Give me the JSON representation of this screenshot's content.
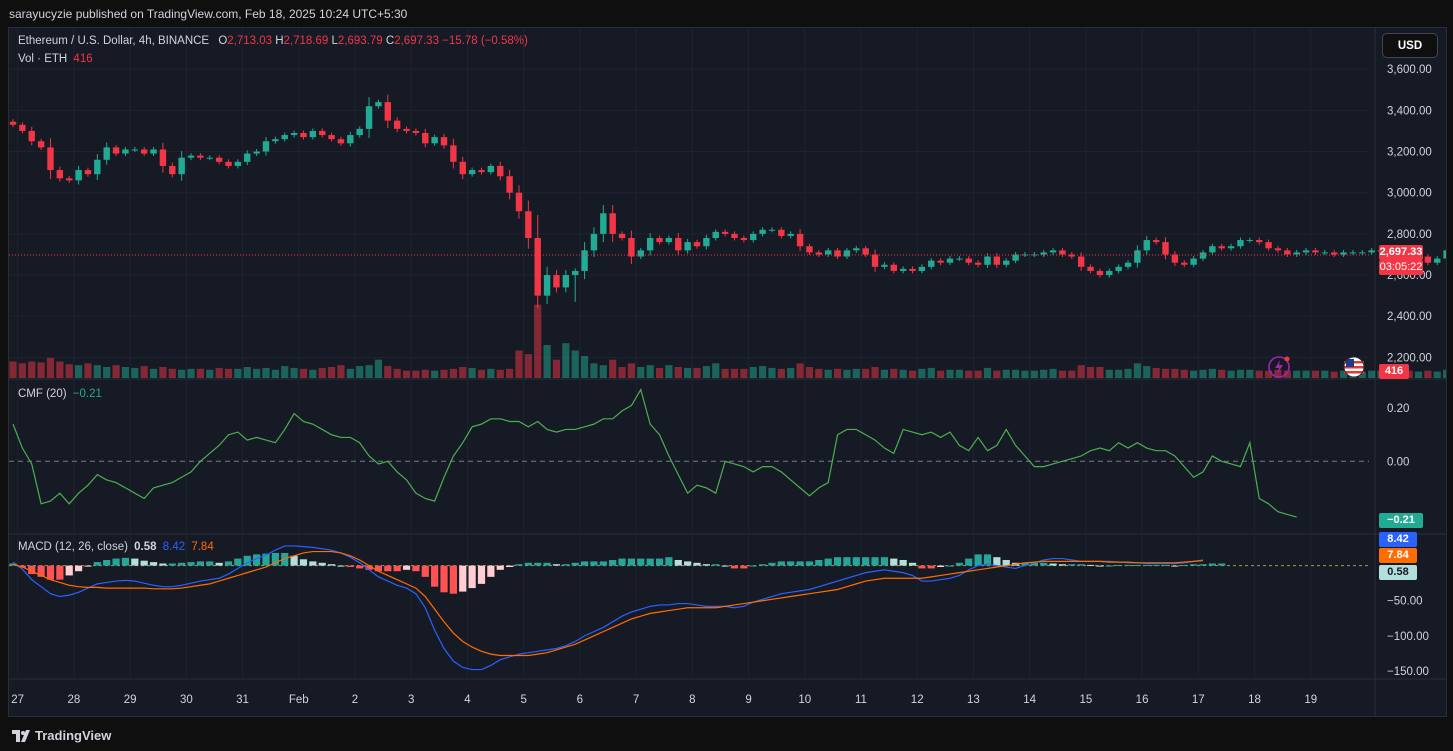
{
  "header": {
    "publisher_line": "sarayucyzie published on TradingView.com, Feb 18, 2025 10:24 UTC+5:30"
  },
  "symbol": {
    "name": "Ethereum / U.S. Dollar, 4h, BINANCE",
    "o_label": "O",
    "o_value": "2,713.03",
    "h_label": "H",
    "h_value": "2,718.69",
    "l_label": "L",
    "l_value": "2,693.79",
    "c_label": "C",
    "c_value": "2,697.33",
    "change": "−15.78 (−0.58%)"
  },
  "volume": {
    "label": "Vol · ETH",
    "value": "416"
  },
  "currency_button": "USD",
  "price_labels": {
    "last": "2,697.33",
    "countdown": "03:05:22",
    "volume": "416"
  },
  "cmf": {
    "label": "CMF (20)",
    "value": "−0.21",
    "badge": "−0.21"
  },
  "macd": {
    "label": "MACD (12, 26, close)",
    "hist": "0.58",
    "macd": "8.42",
    "signal": "7.84",
    "badge_macd": "8.42",
    "badge_signal": "7.84",
    "badge_hist": "0.58"
  },
  "brand": "TradingView",
  "colors": {
    "up": "#22ab94",
    "down": "#f23645",
    "macd_line": "#2962ff",
    "signal_line": "#ff6d00",
    "cmf_line": "#4caf50",
    "hist_up_strong": "#26a69a",
    "hist_up_weak": "#b2dfdb",
    "hist_down_strong": "#ff5252",
    "hist_down_weak": "#ffcdd2"
  },
  "chart_data": [
    {
      "type": "candlestick",
      "title": "Ethereum / U.S. Dollar, 4h, BINANCE",
      "x_tick_labels": [
        "27",
        "28",
        "29",
        "30",
        "31",
        "Feb",
        "2",
        "3",
        "4",
        "5",
        "6",
        "7",
        "8",
        "9",
        "10",
        "11",
        "12",
        "13",
        "14",
        "15",
        "16",
        "17",
        "18",
        "19"
      ],
      "y_tick_labels": [
        "3,600.00",
        "3,400.00",
        "3,200.00",
        "3,000.00",
        "2,800.00",
        "2,600.00",
        "2,400.00",
        "2,200.00"
      ],
      "ylim": [
        2100,
        3800
      ],
      "start": "Jan 26, 21:00",
      "bar_interval_hours": 4,
      "closes": [
        3330,
        3300,
        3250,
        3220,
        3110,
        3070,
        3060,
        3110,
        3090,
        3160,
        3220,
        3190,
        3210,
        3210,
        3190,
        3210,
        3130,
        3090,
        3170,
        3180,
        3170,
        3170,
        3150,
        3130,
        3150,
        3190,
        3200,
        3250,
        3260,
        3280,
        3290,
        3270,
        3300,
        3280,
        3260,
        3240,
        3280,
        3310,
        3420,
        3440,
        3350,
        3310,
        3300,
        3290,
        3240,
        3270,
        3230,
        3150,
        3090,
        3110,
        3100,
        3130,
        3080,
        3000,
        2910,
        2780,
        2500,
        2600,
        2540,
        2600,
        2620,
        2720,
        2800,
        2900,
        2800,
        2780,
        2690,
        2720,
        2780,
        2760,
        2780,
        2720,
        2760,
        2740,
        2780,
        2810,
        2800,
        2780,
        2770,
        2800,
        2820,
        2820,
        2790,
        2800,
        2740,
        2710,
        2700,
        2720,
        2690,
        2720,
        2730,
        2700,
        2640,
        2650,
        2620,
        2630,
        2620,
        2640,
        2670,
        2660,
        2680,
        2680,
        2660,
        2650,
        2690,
        2650,
        2670,
        2700,
        2700,
        2700,
        2710,
        2720,
        2700,
        2690,
        2640,
        2620,
        2600,
        2620,
        2640,
        2660,
        2720,
        2770,
        2760,
        2700,
        2660,
        2650,
        2680,
        2710,
        2740,
        2730,
        2740,
        2770,
        2770,
        2760,
        2730,
        2720,
        2700,
        2710,
        2720,
        2710,
        2710,
        2700,
        2710,
        2710,
        2710,
        2720,
        2720,
        2700,
        2700,
        2690,
        2690,
        2660,
        2680,
        2720,
        2780,
        2770,
        2740,
        2740,
        2710,
        2700
      ],
      "volume": [
        18,
        16,
        18,
        17,
        22,
        18,
        15,
        14,
        16,
        14,
        12,
        14,
        12,
        11,
        13,
        10,
        12,
        10,
        9,
        10,
        10,
        9,
        11,
        10,
        10,
        12,
        10,
        11,
        9,
        13,
        11,
        10,
        9,
        11,
        12,
        14,
        10,
        13,
        14,
        20,
        13,
        10,
        8,
        8,
        9,
        8,
        9,
        10,
        12,
        11,
        9,
        10,
        9,
        10,
        30,
        26,
        80,
        36,
        20,
        38,
        30,
        24,
        16,
        14,
        20,
        12,
        16,
        12,
        14,
        11,
        14,
        12,
        11,
        11,
        13,
        16,
        10,
        10,
        10,
        12,
        13,
        11,
        10,
        11,
        16,
        12,
        10,
        9,
        10,
        9,
        10,
        10,
        12,
        9,
        10,
        9,
        8,
        10,
        11,
        8,
        9,
        9,
        8,
        8,
        11,
        8,
        9,
        9,
        8,
        8,
        9,
        10,
        8,
        8,
        14,
        12,
        12,
        9,
        9,
        10,
        16,
        13,
        11,
        10,
        10,
        9,
        8,
        9,
        10,
        9,
        8,
        9,
        9,
        8,
        8,
        9,
        8,
        8,
        8,
        8,
        8,
        7,
        8,
        7,
        7,
        8,
        8,
        7,
        7,
        8,
        7,
        8,
        7,
        9,
        14,
        17,
        12,
        9,
        8,
        5
      ],
      "last_price": 2697.33
    },
    {
      "type": "line",
      "title": "CMF (20)",
      "y_tick_labels": [
        "0.20",
        "0.00"
      ],
      "ylim": [
        -0.27,
        0.31
      ],
      "values": [
        0.14,
        0.05,
        -0.01,
        -0.16,
        -0.15,
        -0.12,
        -0.16,
        -0.12,
        -0.09,
        -0.05,
        -0.07,
        -0.08,
        -0.1,
        -0.12,
        -0.14,
        -0.1,
        -0.09,
        -0.08,
        -0.06,
        -0.04,
        0.0,
        0.03,
        0.06,
        0.1,
        0.11,
        0.08,
        0.09,
        0.08,
        0.07,
        0.12,
        0.18,
        0.15,
        0.14,
        0.12,
        0.1,
        0.09,
        0.09,
        0.07,
        0.02,
        -0.01,
        0.0,
        -0.04,
        -0.07,
        -0.12,
        -0.14,
        -0.15,
        -0.06,
        0.02,
        0.07,
        0.13,
        0.14,
        0.16,
        0.16,
        0.15,
        0.15,
        0.13,
        0.15,
        0.12,
        0.11,
        0.12,
        0.12,
        0.13,
        0.14,
        0.16,
        0.16,
        0.19,
        0.21,
        0.27,
        0.14,
        0.1,
        0.02,
        -0.05,
        -0.12,
        -0.09,
        -0.1,
        -0.12,
        0.0,
        -0.01,
        -0.02,
        -0.04,
        -0.02,
        -0.02,
        -0.04,
        -0.07,
        -0.1,
        -0.13,
        -0.1,
        -0.08,
        0.1,
        0.12,
        0.12,
        0.1,
        0.08,
        0.05,
        0.03,
        0.12,
        0.11,
        0.1,
        0.11,
        0.09,
        0.11,
        0.06,
        0.04,
        0.09,
        0.04,
        0.06,
        0.12,
        0.06,
        0.02,
        -0.02,
        -0.02,
        -0.01,
        0.0,
        0.01,
        0.02,
        0.04,
        0.05,
        0.04,
        0.07,
        0.05,
        0.07,
        0.05,
        0.04,
        0.04,
        0.02,
        -0.02,
        -0.06,
        -0.04,
        0.02,
        0.0,
        -0.01,
        -0.02,
        0.07,
        -0.14,
        -0.16,
        -0.19,
        -0.2,
        -0.21
      ]
    },
    {
      "type": "line",
      "title": "MACD (12, 26, close)",
      "y_tick_labels": [
        "−50.00",
        "−100.00",
        "−150.00"
      ],
      "ylim": [
        -160,
        45
      ],
      "macd": [
        5,
        -5,
        -20,
        -30,
        -40,
        -44,
        -42,
        -38,
        -32,
        -26,
        -24,
        -22,
        -21,
        -22,
        -25,
        -28,
        -30,
        -30,
        -28,
        -25,
        -22,
        -20,
        -18,
        -12,
        -4,
        4,
        10,
        15,
        22,
        28,
        28,
        27,
        26,
        24,
        22,
        18,
        12,
        4,
        -6,
        -16,
        -22,
        -28,
        -32,
        -40,
        -60,
        -92,
        -118,
        -136,
        -145,
        -148,
        -148,
        -142,
        -134,
        -130,
        -126,
        -124,
        -122,
        -120,
        -118,
        -114,
        -108,
        -100,
        -94,
        -88,
        -80,
        -72,
        -66,
        -62,
        -58,
        -56,
        -56,
        -54,
        -54,
        -56,
        -58,
        -58,
        -58,
        -60,
        -58,
        -52,
        -48,
        -44,
        -40,
        -38,
        -36,
        -34,
        -30,
        -26,
        -22,
        -18,
        -14,
        -10,
        -8,
        -6,
        -8,
        -10,
        -14,
        -22,
        -22,
        -20,
        -18,
        -14,
        -6,
        0,
        2,
        0,
        -2,
        -4,
        0,
        4,
        8,
        10,
        10,
        8,
        6,
        6,
        6,
        6,
        5,
        4,
        4,
        3,
        3,
        3,
        3,
        4,
        6,
        8
      ],
      "signal": [
        2,
        -2,
        -8,
        -14,
        -20,
        -24,
        -28,
        -30,
        -31,
        -31,
        -32,
        -32,
        -32,
        -32,
        -32,
        -33,
        -33,
        -33,
        -32,
        -30,
        -28,
        -26,
        -22,
        -18,
        -14,
        -10,
        -6,
        -2,
        4,
        10,
        14,
        18,
        20,
        20,
        20,
        18,
        14,
        8,
        0,
        -8,
        -14,
        -20,
        -26,
        -32,
        -44,
        -62,
        -80,
        -96,
        -108,
        -116,
        -122,
        -126,
        -128,
        -128,
        -128,
        -128,
        -126,
        -124,
        -120,
        -116,
        -112,
        -106,
        -100,
        -94,
        -88,
        -82,
        -76,
        -72,
        -68,
        -66,
        -64,
        -62,
        -60,
        -60,
        -60,
        -60,
        -58,
        -56,
        -54,
        -52,
        -50,
        -48,
        -46,
        -44,
        -42,
        -40,
        -38,
        -36,
        -34,
        -30,
        -26,
        -22,
        -20,
        -18,
        -18,
        -18,
        -18,
        -18,
        -16,
        -14,
        -12,
        -10,
        -8,
        -6,
        -4,
        -2,
        0,
        2,
        4,
        5,
        6,
        6,
        6,
        6,
        6,
        6,
        6,
        5,
        5,
        5,
        4,
        4,
        4,
        4,
        4,
        5,
        6,
        7
      ],
      "histogram": [
        3,
        -3,
        -12,
        -16,
        -20,
        -20,
        -14,
        -8,
        -1,
        5,
        8,
        10,
        11,
        10,
        7,
        5,
        3,
        3,
        4,
        5,
        6,
        6,
        4,
        6,
        10,
        14,
        16,
        17,
        18,
        18,
        14,
        9,
        6,
        4,
        2,
        0,
        -2,
        -4,
        -6,
        -8,
        -8,
        -8,
        -6,
        -8,
        -16,
        -30,
        -38,
        -40,
        -37,
        -32,
        -26,
        -16,
        -6,
        -2,
        2,
        4,
        4,
        4,
        2,
        2,
        4,
        6,
        6,
        6,
        8,
        10,
        10,
        10,
        10,
        10,
        12,
        8,
        6,
        4,
        2,
        2,
        0,
        -4,
        -4,
        0,
        2,
        4,
        6,
        6,
        6,
        6,
        8,
        10,
        12,
        12,
        12,
        12,
        12,
        12,
        10,
        8,
        4,
        -4,
        -4,
        -2,
        0,
        4,
        10,
        16,
        16,
        12,
        8,
        4,
        4,
        4,
        4,
        3,
        2,
        2,
        2,
        1,
        0,
        0,
        1,
        1,
        1,
        1,
        1,
        1,
        0,
        1,
        2,
        2,
        3,
        3
      ],
      "last_hist": 0.58,
      "last_macd": 8.42,
      "last_signal": 7.84
    }
  ]
}
